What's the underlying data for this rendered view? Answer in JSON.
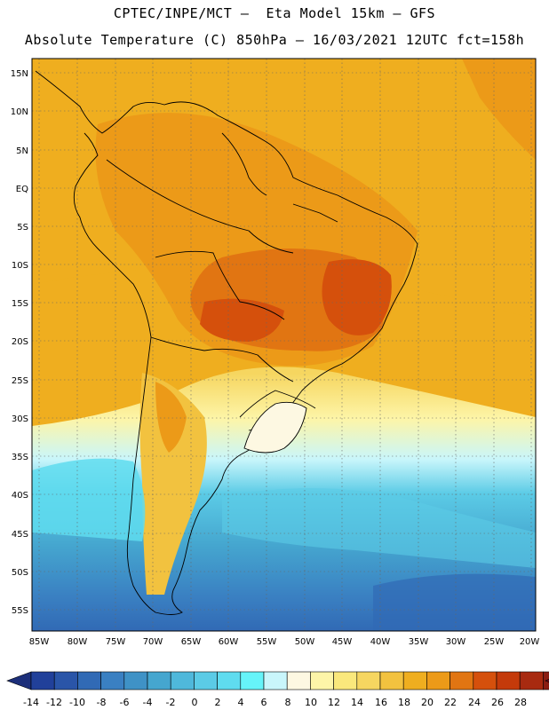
{
  "header": {
    "line1": "CPTEC/INPE/MCT –  Eta Model 15km – GFS",
    "line2": "Absolute Temperature (C) 850hPa – 16/03/2021 12UTC fct=158h"
  },
  "axes": {
    "lat_labels": [
      "15N",
      "10N",
      "5N",
      "EQ",
      "5S",
      "10S",
      "15S",
      "20S",
      "25S",
      "30S",
      "35S",
      "40S",
      "45S",
      "50S",
      "55S"
    ],
    "lon_labels": [
      "85W",
      "80W",
      "75W",
      "70W",
      "65W",
      "60W",
      "55W",
      "50W",
      "45W",
      "40W",
      "35W",
      "30W",
      "25W",
      "20W"
    ]
  },
  "colorbar": {
    "labels": [
      "-14",
      "-12",
      "-10",
      "-8",
      "-6",
      "-4",
      "-2",
      "0",
      "2",
      "4",
      "6",
      "8",
      "10",
      "12",
      "14",
      "16",
      "18",
      "20",
      "22",
      "24",
      "26",
      "28"
    ],
    "under_color": "#1c2f7a",
    "over_color": "#6e0a18",
    "colors": [
      "#21409a",
      "#2a55a8",
      "#316ab5",
      "#3a80c2",
      "#3f92c6",
      "#45a6cf",
      "#4fb8db",
      "#5bcbe6",
      "#5fdcef",
      "#66f4f9",
      "#c9f6fb",
      "#fdf8e2",
      "#fdf5a8",
      "#fae87c",
      "#f6d660",
      "#f2c23f",
      "#efae1f",
      "#ec9a18",
      "#e17512",
      "#d5500c",
      "#c43a0a",
      "#a82a10",
      "#8a1d12"
    ]
  }
}
